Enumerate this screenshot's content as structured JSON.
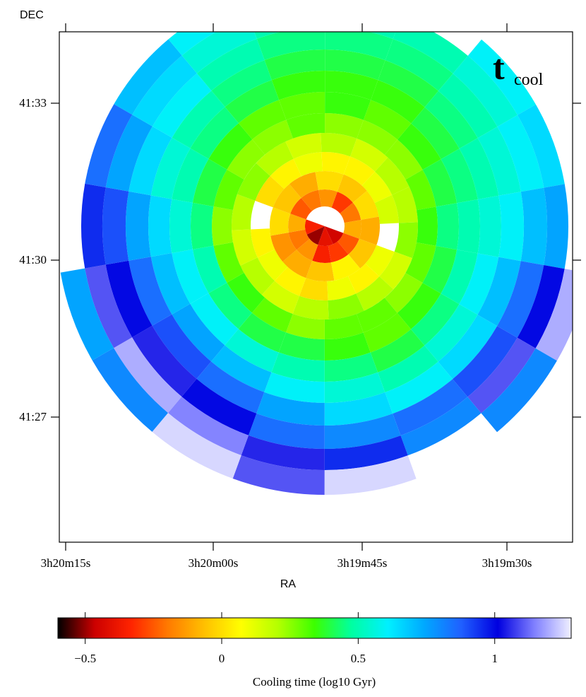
{
  "chart_data": {
    "type": "heatmap",
    "title_main": "t",
    "title_sub": "cool",
    "xlabel": "RA",
    "ylabel": "DEC",
    "x_ticks": [
      "3h20m15s",
      "3h20m00s",
      "3h19m45s",
      "3h19m30s"
    ],
    "y_ticks": [
      "41:33",
      "41:30",
      "41:27"
    ],
    "colorbar": {
      "label": "Cooling time (log10 Gyr)",
      "range": [
        -0.6,
        1.28
      ],
      "ticks": [
        {
          "value": -0.5,
          "label": "−0.5"
        },
        {
          "value": 0,
          "label": "0"
        },
        {
          "value": 0.5,
          "label": "0.5"
        },
        {
          "value": 1,
          "label": "1"
        }
      ],
      "colormap": [
        "#000000",
        "#cc0000",
        "#ff2400",
        "#ff7a00",
        "#ffc000",
        "#ffff00",
        "#b4ff00",
        "#3cff00",
        "#00ffa0",
        "#00f0ff",
        "#00a8ff",
        "#2060ff",
        "#0000e0",
        "#8080ff",
        "#f0f0ff"
      ]
    },
    "rings": [
      {
        "values": [
          null,
          null,
          -0.45,
          -0.4,
          -0.5,
          -0.35,
          null,
          null
        ]
      },
      {
        "values": [
          -0.3,
          -0.2,
          -0.1,
          -0.25,
          -0.3,
          -0.35,
          -0.15,
          -0.2,
          -0.1,
          -0.25,
          -0.2,
          -0.15
        ]
      },
      {
        "values": [
          -0.05,
          0.0,
          -0.1,
          -0.05,
          0.05,
          -0.05,
          -0.1,
          -0.15,
          0.0,
          -0.05,
          -0.1,
          0.0
        ]
      },
      {
        "values": [
          0.05,
          0.1,
          0.15,
          null,
          0.1,
          0.05,
          0.1,
          0.0,
          0.05,
          0.1,
          0.05,
          null,
          0.0,
          0.05,
          0.1,
          0.05
        ]
      },
      {
        "values": [
          0.15,
          0.2,
          0.2,
          0.25,
          0.15,
          0.2,
          0.25,
          0.2,
          0.15,
          0.2,
          0.15,
          0.2,
          0.25,
          0.2,
          0.15,
          0.2
        ]
      },
      {
        "values": [
          0.25,
          0.25,
          0.3,
          0.35,
          0.3,
          0.25,
          0.3,
          0.3,
          0.25,
          0.3,
          0.35,
          0.3,
          0.25,
          0.3,
          0.25,
          0.25,
          0.3,
          0.25
        ]
      },
      {
        "values": [
          0.3,
          0.35,
          0.4,
          0.45,
          0.4,
          0.35,
          0.3,
          0.35,
          0.4,
          0.4,
          0.45,
          0.5,
          0.45,
          0.4,
          0.35,
          0.3,
          0.3,
          0.35
        ]
      },
      {
        "values": [
          0.35,
          0.4,
          0.45,
          0.5,
          0.5,
          0.45,
          0.4,
          0.45,
          0.5,
          0.55,
          0.6,
          0.6,
          0.55,
          0.5,
          0.45,
          0.4,
          0.35,
          0.35
        ]
      },
      {
        "values": [
          0.4,
          0.45,
          0.5,
          0.55,
          0.6,
          0.55,
          0.5,
          0.55,
          0.6,
          0.7,
          0.75,
          0.7,
          0.65,
          0.55,
          0.5,
          0.45,
          0.4,
          0.4
        ]
      },
      {
        "values": [
          0.45,
          0.5,
          0.55,
          0.6,
          0.7,
          0.65,
          0.6,
          0.65,
          0.75,
          0.85,
          0.9,
          0.85,
          0.75,
          0.65,
          0.6,
          0.5,
          0.45,
          0.45
        ]
      },
      {
        "values": [
          0.5,
          0.55,
          0.6,
          0.7,
          0.85,
          0.9,
          0.85,
          0.8,
          0.85,
          1.0,
          1.05,
          1.0,
          0.9,
          0.75,
          0.65,
          0.55,
          0.5,
          0.5
        ]
      },
      {
        "values": [
          null,
          0.6,
          0.65,
          0.75,
          1.0,
          1.1,
          0.8,
          0.95,
          1.05,
          1.15,
          1.2,
          1.1,
          0.95,
          0.85,
          0.7,
          0.6,
          null,
          null
        ]
      },
      {
        "values": [
          null,
          null,
          null,
          null,
          1.2,
          0.8,
          null,
          1.25,
          1.1,
          1.25,
          0.8,
          0.75,
          null,
          null,
          null,
          null,
          null,
          null
        ]
      }
    ]
  }
}
